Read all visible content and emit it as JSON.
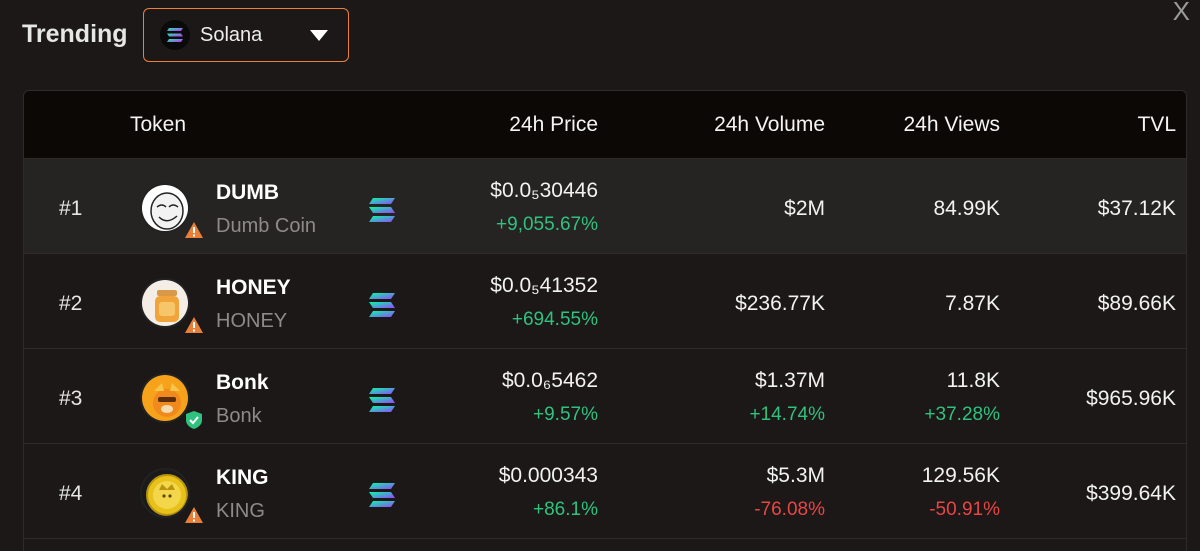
{
  "header": {
    "title": "Trending",
    "chain_selector": {
      "selected": "Solana",
      "icon": "solana-logo-icon"
    },
    "close_label": "X"
  },
  "table": {
    "columns": [
      "Token",
      "24h Price",
      "24h Volume",
      "24h Views",
      "TVL"
    ],
    "rows": [
      {
        "rank": "#1",
        "symbol": "DUMB",
        "name": "Dumb Coin",
        "price": "$0.0₅30446",
        "price_change": "+9,055.67%",
        "volume": "$2M",
        "volume_change": "",
        "views": "84.99K",
        "views_change": "",
        "tvl": "$37.12K",
        "badge": "warning-icon",
        "highlighted": true
      },
      {
        "rank": "#2",
        "symbol": "HONEY",
        "name": "HONEY",
        "price": "$0.0₅41352",
        "price_change": "+694.55%",
        "volume": "$236.77K",
        "volume_change": "",
        "views": "7.87K",
        "views_change": "",
        "tvl": "$89.66K",
        "badge": "warning-icon",
        "highlighted": false
      },
      {
        "rank": "#3",
        "symbol": "Bonk",
        "name": "Bonk",
        "price": "$0.0₆5462",
        "price_change": "+9.57%",
        "volume": "$1.37M",
        "volume_change": "+14.74%",
        "views": "11.8K",
        "views_change": "+37.28%",
        "tvl": "$965.96K",
        "badge": "verified-shield-icon",
        "highlighted": false
      },
      {
        "rank": "#4",
        "symbol": "KING",
        "name": "KING",
        "price": "$0.000343",
        "price_change": "+86.1%",
        "volume": "$5.3M",
        "volume_change": "-76.08%",
        "views": "129.56K",
        "views_change": "-50.91%",
        "tvl": "$399.64K",
        "badge": "warning-icon",
        "highlighted": false
      }
    ]
  },
  "colors": {
    "accent": "#e8803a",
    "positive": "#2fc27e",
    "negative": "#e84545",
    "background": "#1b1817",
    "header_bg": "#0b0806"
  }
}
